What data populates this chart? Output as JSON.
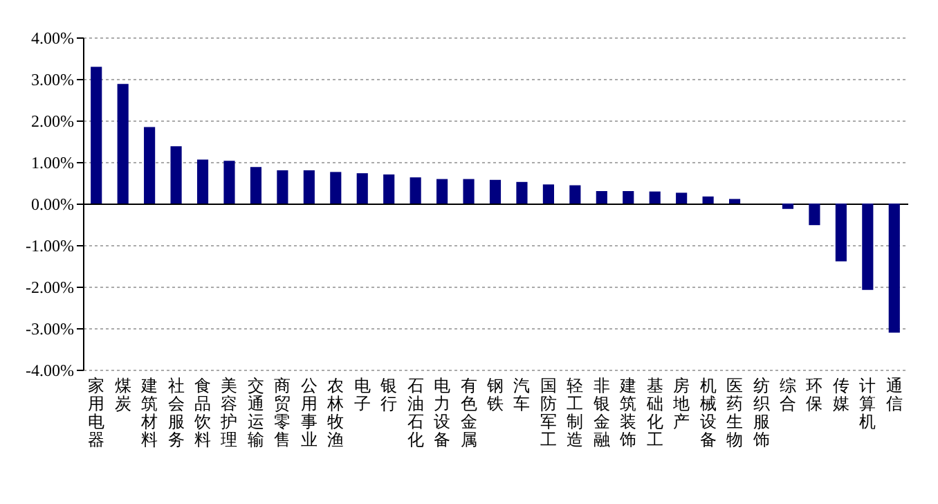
{
  "chart_data": {
    "type": "bar",
    "categories": [
      "家用电器",
      "煤炭",
      "建筑材料",
      "社会服务",
      "食品饮料",
      "美容护理",
      "交通运输",
      "商贸零售",
      "公用事业",
      "农林牧渔",
      "电子",
      "银行",
      "石油石化",
      "电力设备",
      "有色金属",
      "钢铁",
      "汽车",
      "国防军工",
      "轻工制造",
      "非银金融",
      "建筑装饰",
      "基础化工",
      "房地产",
      "机械设备",
      "医药生物",
      "纺织服饰",
      "综合",
      "环保",
      "传媒",
      "计算机",
      "通信"
    ],
    "values": [
      3.29,
      2.88,
      1.84,
      1.38,
      1.06,
      1.03,
      0.88,
      0.8,
      0.8,
      0.76,
      0.73,
      0.7,
      0.63,
      0.59,
      0.59,
      0.57,
      0.52,
      0.46,
      0.44,
      0.3,
      0.3,
      0.29,
      0.26,
      0.17,
      0.11,
      0.0,
      -0.13,
      -0.52,
      -1.39,
      -2.08,
      -3.11
    ],
    "color": "#000080",
    "ylim": [
      -4,
      4
    ],
    "yticks": [
      {
        "value": 4,
        "label": "4.00%"
      },
      {
        "value": 3,
        "label": "3.00%"
      },
      {
        "value": 2,
        "label": "2.00%"
      },
      {
        "value": 1,
        "label": "1.00%"
      },
      {
        "value": 0,
        "label": "0.00%"
      },
      {
        "value": -1,
        "label": "-1.00%"
      },
      {
        "value": -2,
        "label": "-2.00%"
      },
      {
        "value": -3,
        "label": "-3.00%"
      },
      {
        "value": -4,
        "label": "-4.00%"
      }
    ],
    "grid": "y"
  }
}
